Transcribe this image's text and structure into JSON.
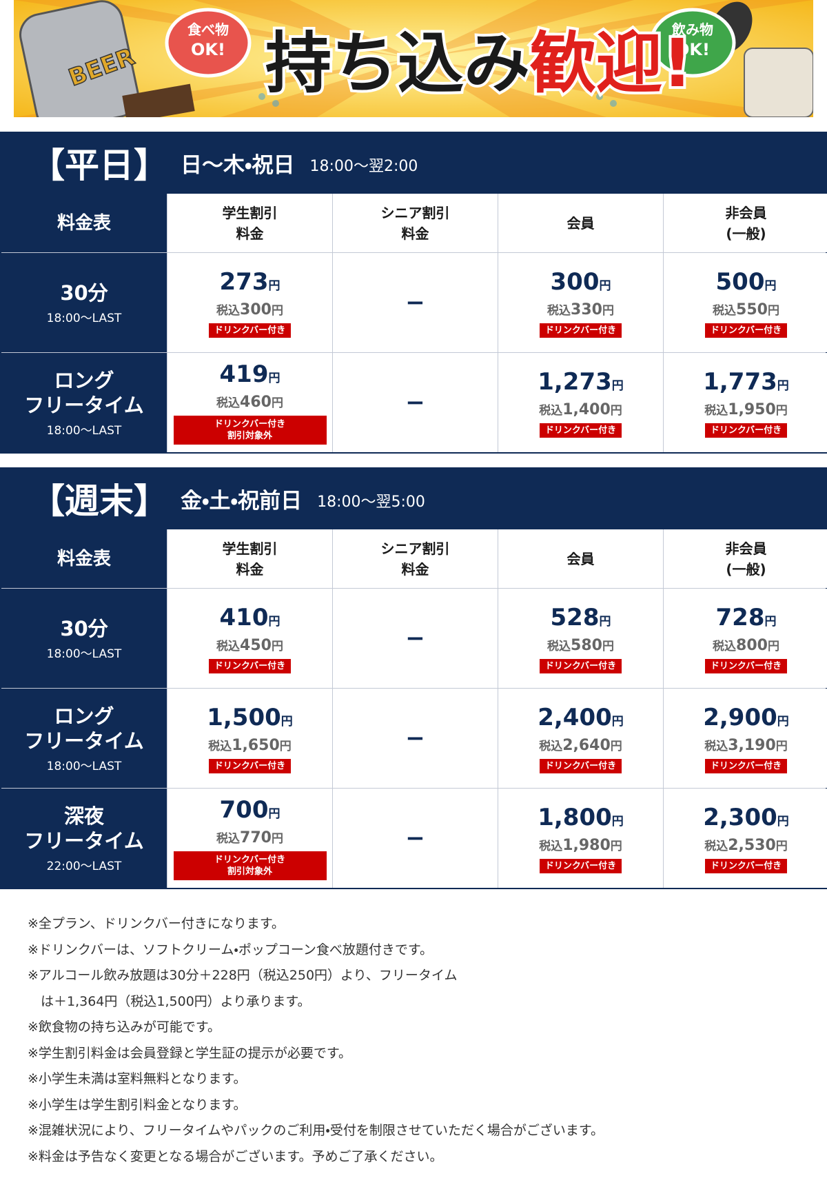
{
  "banner": {
    "food_badge": [
      "食べ物",
      "OK!"
    ],
    "drink_badge": [
      "飲み物",
      "OK!"
    ],
    "title": "持ち込み",
    "title_red": "歓迎!",
    "can_label": "BEER"
  },
  "sections": [
    {
      "label": "【平日】",
      "days": "日〜木・祝日",
      "hours": "18:00〜翌2:00",
      "headers": [
        "料金表",
        "学生割引\n料金",
        "シニア割引\n料金",
        "会員",
        "非会員\n(一般)"
      ],
      "rows": [
        {
          "name": "30分",
          "time": "18:00〜LAST",
          "cells": [
            {
              "price": "273円",
              "tax": "税込300円",
              "note": "ドリンクバー付き"
            },
            {
              "dash": "−"
            },
            {
              "price": "300円",
              "tax": "税込330円",
              "note": "ドリンクバー付き"
            },
            {
              "price": "500円",
              "tax": "税込550円",
              "note": "ドリンクバー付き"
            }
          ]
        },
        {
          "name": "ロング\nフリータイム",
          "time": "18:00〜LAST",
          "cells": [
            {
              "price": "419円",
              "tax": "税込460円",
              "note": "ドリンクバー付き\n割引対象外"
            },
            {
              "dash": "−"
            },
            {
              "price": "1,273円",
              "tax": "税込1,400円",
              "note": "ドリンクバー付き"
            },
            {
              "price": "1,773円",
              "tax": "税込1,950円",
              "note": "ドリンクバー付き"
            }
          ]
        }
      ]
    },
    {
      "label": "【週末】",
      "days": "金・土・祝前日",
      "hours": "18:00〜翌5:00",
      "headers": [
        "料金表",
        "学生割引\n料金",
        "シニア割引\n料金",
        "会員",
        "非会員\n(一般)"
      ],
      "rows": [
        {
          "name": "30分",
          "time": "18:00〜LAST",
          "cells": [
            {
              "price": "410円",
              "tax": "税込450円",
              "note": "ドリンクバー付き"
            },
            {
              "dash": "−"
            },
            {
              "price": "528円",
              "tax": "税込580円",
              "note": "ドリンクバー付き"
            },
            {
              "price": "728円",
              "tax": "税込800円",
              "note": "ドリンクバー付き"
            }
          ]
        },
        {
          "name": "ロング\nフリータイム",
          "time": "18:00〜LAST",
          "cells": [
            {
              "price": "1,500円",
              "tax": "税込1,650円",
              "note": "ドリンクバー付き"
            },
            {
              "dash": "−"
            },
            {
              "price": "2,400円",
              "tax": "税込2,640円",
              "note": "ドリンクバー付き"
            },
            {
              "price": "2,900円",
              "tax": "税込3,190円",
              "note": "ドリンクバー付き"
            }
          ]
        },
        {
          "name": "深夜\nフリータイム",
          "time": "22:00〜LAST",
          "cells": [
            {
              "price": "700円",
              "tax": "税込770円",
              "note": "ドリンクバー付き\n割引対象外"
            },
            {
              "dash": "−"
            },
            {
              "price": "1,800円",
              "tax": "税込1,980円",
              "note": "ドリンクバー付き"
            },
            {
              "price": "2,300円",
              "tax": "税込2,530円",
              "note": "ドリンクバー付き"
            }
          ]
        }
      ]
    }
  ],
  "notes": [
    "※全プラン、ドリンクバー付きになります。",
    "※ドリンクバーは、ソフトクリーム・ポップコーン食べ放題付きです。",
    "※アルコール飲み放題は30分＋228円（税込250円）より、フリータイム\n　は＋1,364円（税込1,500円）より承ります。",
    "※飲食物の持ち込みが可能です。",
    "※学生割引料金は会員登録と学生証の提示が必要です。",
    "※小学生未満は室料無料となります。",
    "※小学生は学生割引料金となります。",
    "※混雑状況により、フリータイムやパックのご利用・受付を制限させていただく場合がございます。",
    "※料金は予告なく変更となる場合がございます。予めご了承ください。"
  ]
}
